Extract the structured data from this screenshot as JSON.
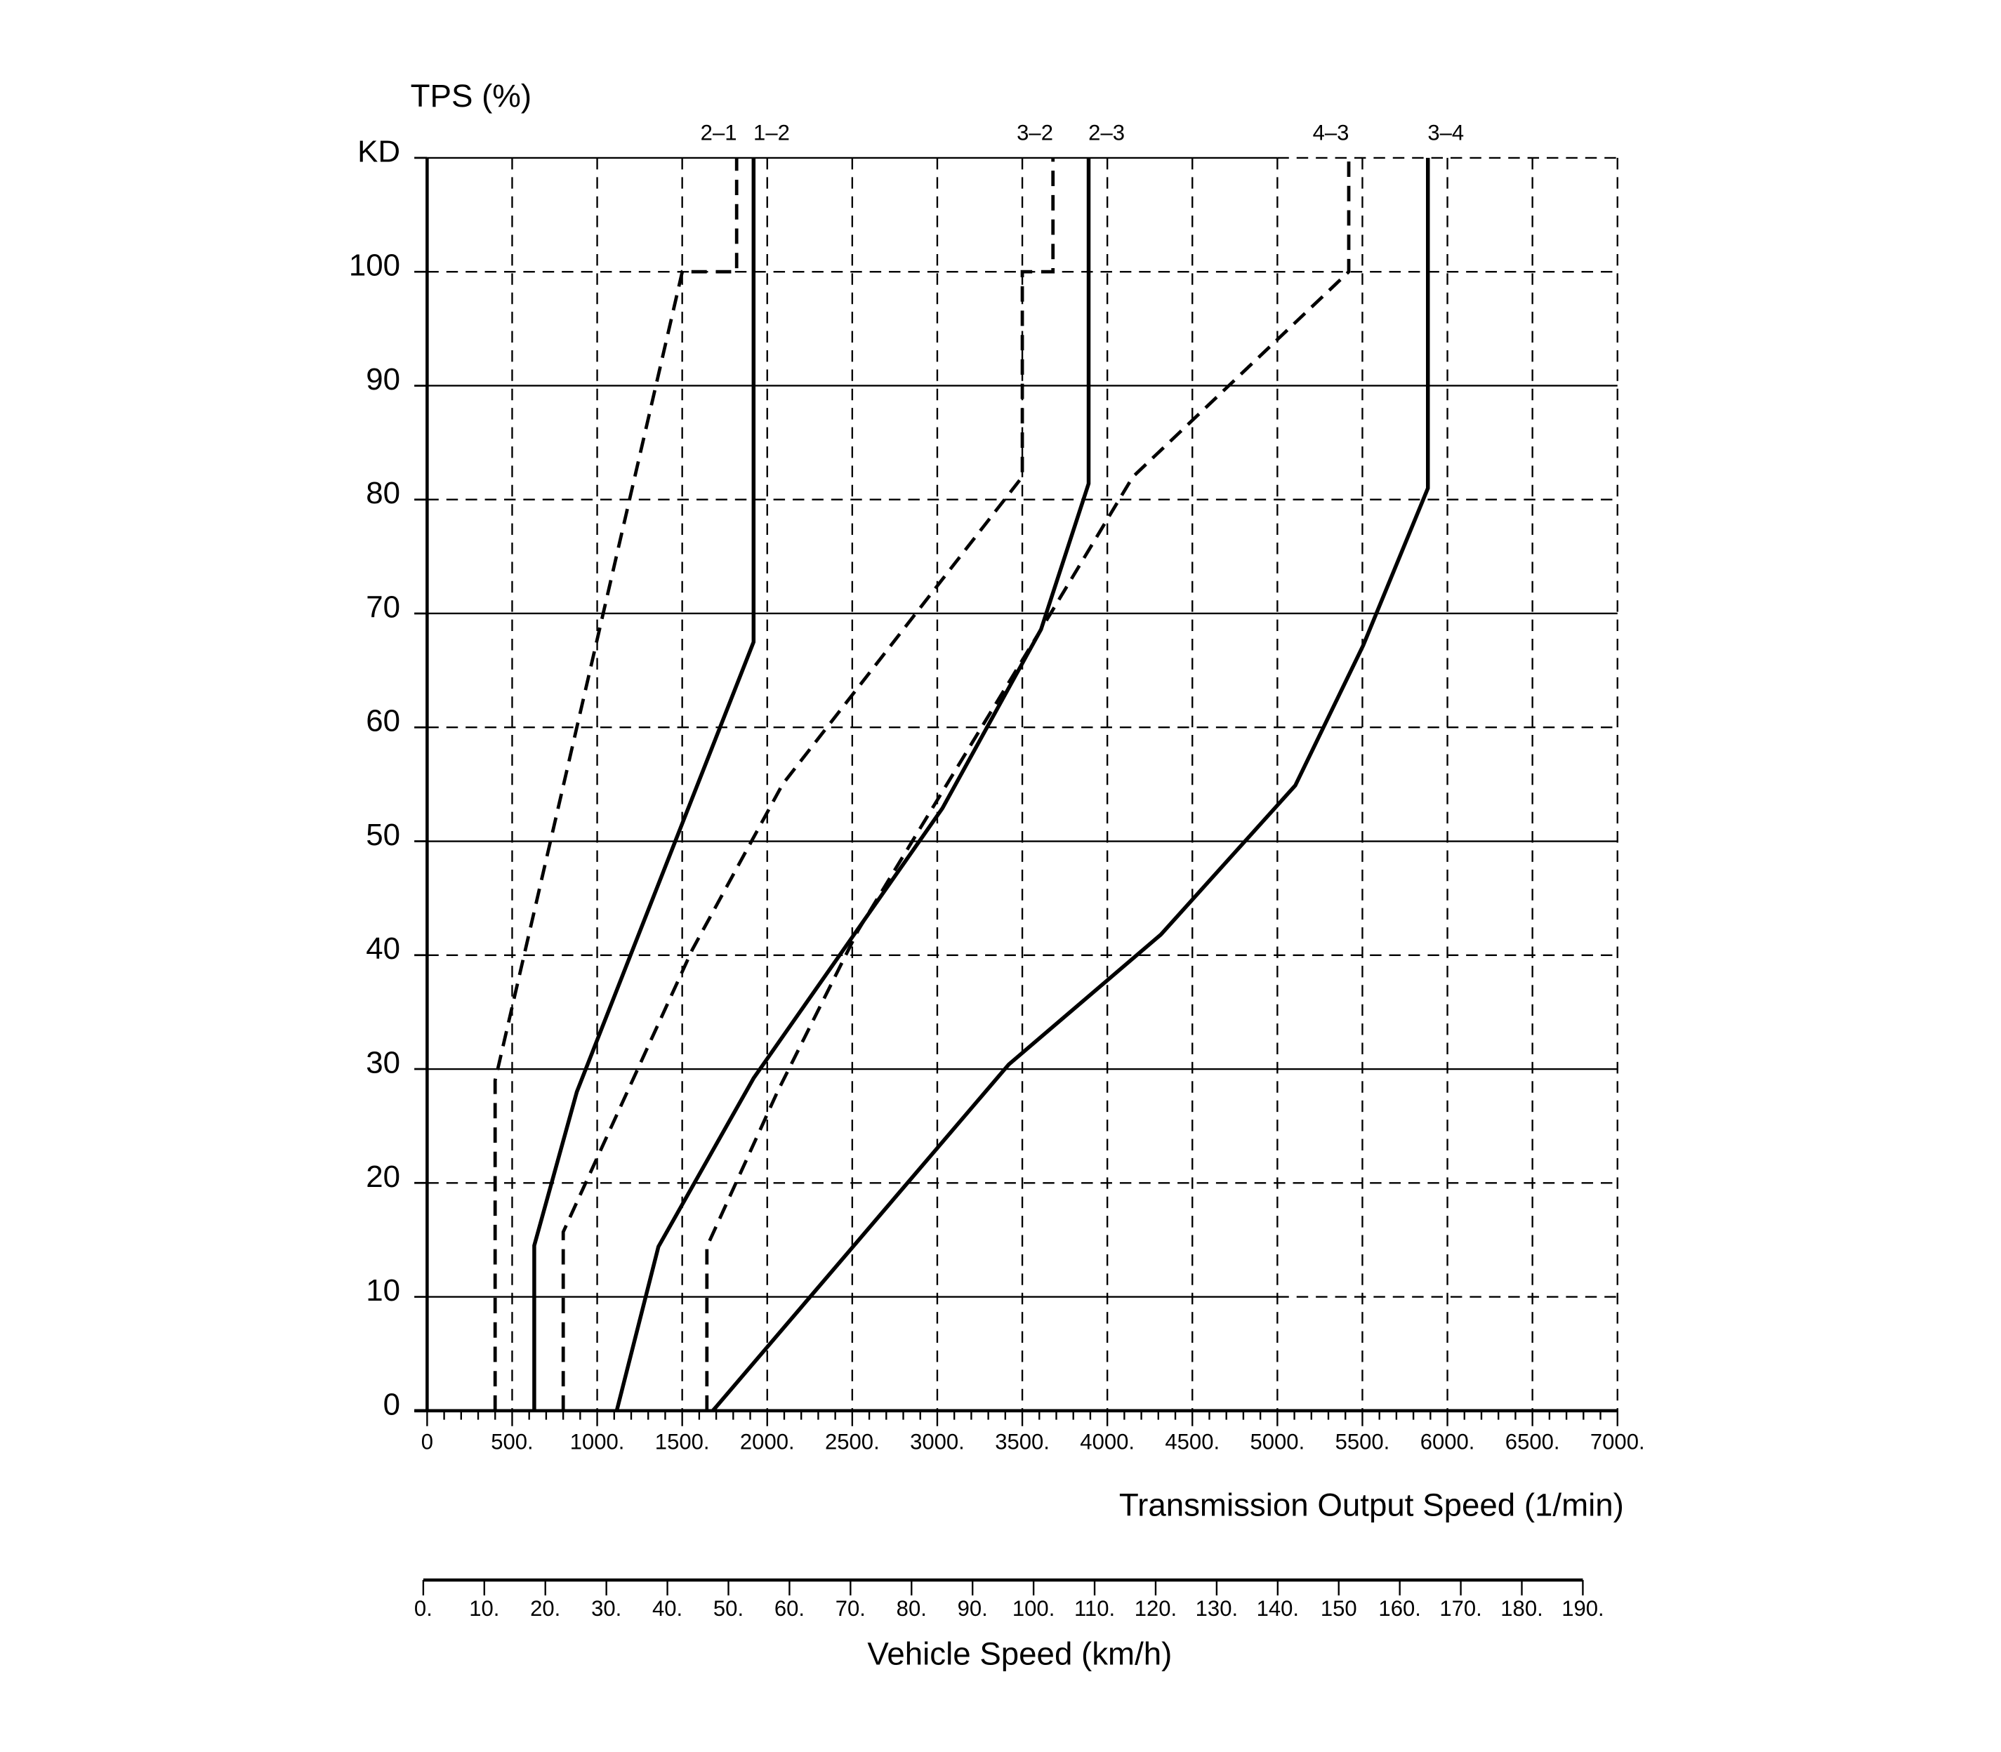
{
  "chart_data": {
    "type": "line",
    "ylabel": "TPS (%)",
    "xlabel": "Transmission Output Speed (1/min)",
    "x2label": "Vehicle Speed (km/h)",
    "xlim": [
      0,
      7000
    ],
    "ylim": [
      0,
      110
    ],
    "x_ticks": [
      0,
      500,
      1000,
      1500,
      2000,
      2500,
      3000,
      3500,
      4000,
      4500,
      5000,
      5500,
      6000,
      6500,
      7000
    ],
    "x_tick_labels": [
      "0",
      "500.",
      "1000.",
      "1500.",
      "2000.",
      "2500.",
      "3000.",
      "3500.",
      "4000.",
      "4500.",
      "5000.",
      "5500.",
      "6000.",
      "6500.",
      "7000."
    ],
    "y_ticks": [
      0,
      10,
      20,
      30,
      40,
      50,
      60,
      70,
      80,
      90,
      100,
      110
    ],
    "y_tick_labels": [
      "0",
      "10",
      "20",
      "30",
      "40",
      "50",
      "60",
      "70",
      "80",
      "90",
      "100",
      "KD"
    ],
    "x2_ticks": [
      0,
      10,
      20,
      30,
      40,
      50,
      60,
      70,
      80,
      90,
      100,
      110,
      120,
      130,
      140,
      150,
      160,
      170,
      180,
      190
    ],
    "x2_tick_labels": [
      "0.",
      "10.",
      "20.",
      "30.",
      "40.",
      "50.",
      "60.",
      "70.",
      "80.",
      "90.",
      "100.",
      "110.",
      "120.",
      "130.",
      "140.",
      "150",
      "160.",
      "170.",
      "180.",
      "190."
    ],
    "x2lim": [
      0,
      190
    ],
    "grid": true,
    "series": [
      {
        "name": "2–1",
        "style": "dashed",
        "x": [
          400,
          400,
          1500,
          1820,
          1820
        ],
        "y": [
          0,
          29,
          100,
          100,
          110
        ]
      },
      {
        "name": "1–2",
        "style": "solid",
        "x": [
          630,
          630,
          880,
          1920,
          1920
        ],
        "y": [
          0,
          14.5,
          28,
          67.5,
          110
        ]
      },
      {
        "name": "3–2",
        "style": "dashed",
        "x": [
          800,
          800,
          1560,
          2090,
          3500,
          3500,
          3680,
          3680
        ],
        "y": [
          0,
          15.7,
          40.5,
          55,
          82,
          100,
          100,
          110
        ]
      },
      {
        "name": "2–3",
        "style": "solid",
        "x": [
          1115,
          1360,
          1920,
          3030,
          3610,
          3890,
          3890
        ],
        "y": [
          0,
          14.4,
          29.2,
          52.9,
          68.6,
          81.4,
          110
        ]
      },
      {
        "name": "4–3",
        "style": "dashed",
        "x": [
          1645,
          1645,
          2060,
          2535,
          3610,
          4150,
          5420,
          5420
        ],
        "y": [
          0,
          14.4,
          28,
          42.2,
          68.6,
          82,
          100,
          110
        ]
      },
      {
        "name": "3–4",
        "style": "solid",
        "x": [
          1680,
          3420,
          4315,
          5105,
          5505,
          5885,
          5885
        ],
        "y": [
          0,
          30.4,
          41.8,
          54.9,
          67.2,
          81,
          110
        ]
      }
    ],
    "colors": {
      "line": "#000000",
      "background": "#ffffff"
    }
  }
}
